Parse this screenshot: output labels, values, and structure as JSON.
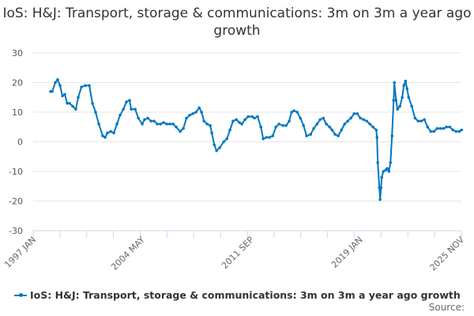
{
  "chart_data": {
    "type": "line",
    "title": "IoS: H&J: Transport, storage & communications: 3m on 3m a year ago growth",
    "xlabel": "",
    "ylabel": "",
    "ylim": [
      -30,
      30
    ],
    "xlim": [
      1997.0,
      2025.83
    ],
    "yticks": [
      30,
      20,
      10,
      0,
      -10,
      -20,
      -30
    ],
    "xticks": [
      {
        "value": 1997.0,
        "label": "1997 JAN"
      },
      {
        "value": 2004.33,
        "label": "2004 MAY"
      },
      {
        "value": 2011.67,
        "label": "2011 SEP"
      },
      {
        "value": 2019.0,
        "label": "2019 JAN"
      },
      {
        "value": 2025.83,
        "label": "2025 NOV"
      }
    ],
    "grid": true,
    "legend_position": "bottom",
    "color": "#0077c0",
    "series": [
      {
        "name": "IoS: H&J: Transport, storage & communications: 3m on 3m a year ago growth",
        "x": [
          1998.17,
          1998.28,
          1998.49,
          1998.65,
          1998.81,
          1998.97,
          1999.13,
          1999.29,
          1999.45,
          1999.66,
          1999.87,
          2000.03,
          2000.25,
          2000.51,
          2000.78,
          2000.99,
          2001.2,
          2001.42,
          2001.68,
          2001.84,
          2002.0,
          2002.22,
          2002.43,
          2002.64,
          2002.85,
          2003.07,
          2003.28,
          2003.49,
          2003.6,
          2003.87,
          2004.08,
          2004.34,
          2004.5,
          2004.72,
          2004.93,
          2005.14,
          2005.36,
          2005.57,
          2005.78,
          2005.99,
          2006.21,
          2006.42,
          2006.63,
          2006.9,
          2007.11,
          2007.32,
          2007.54,
          2007.75,
          2007.96,
          2008.18,
          2008.34,
          2008.5,
          2008.71,
          2008.92,
          2009.03,
          2009.19,
          2009.35,
          2009.56,
          2009.83,
          2010.04,
          2010.25,
          2010.46,
          2010.68,
          2010.89,
          2011.05,
          2011.26,
          2011.48,
          2011.74,
          2011.9,
          2012.11,
          2012.33,
          2012.49,
          2012.7,
          2012.91,
          2013.13,
          2013.34,
          2013.55,
          2013.82,
          2014.03,
          2014.24,
          2014.4,
          2014.56,
          2014.78,
          2014.99,
          2015.2,
          2015.41,
          2015.68,
          2015.89,
          2016.11,
          2016.32,
          2016.53,
          2016.74,
          2016.96,
          2017.12,
          2017.33,
          2017.54,
          2017.76,
          2017.97,
          2018.18,
          2018.39,
          2018.61,
          2018.82,
          2019.03,
          2019.25,
          2019.46,
          2019.67,
          2019.88,
          2020.1,
          2020.15,
          2020.2,
          2020.31,
          2020.36,
          2020.42,
          2020.47,
          2020.58,
          2020.74,
          2020.84,
          2020.95,
          2021.06,
          2021.16,
          2021.27,
          2021.32,
          2021.43,
          2021.53,
          2021.69,
          2021.85,
          2021.96,
          2022.07,
          2022.17,
          2022.28,
          2022.49,
          2022.71,
          2022.92,
          2023.13,
          2023.34,
          2023.56,
          2023.77,
          2023.98,
          2024.2,
          2024.41,
          2024.62,
          2024.83,
          2025.05,
          2025.26,
          2025.47,
          2025.69,
          2025.85
        ],
        "y": [
          17,
          17,
          20,
          21,
          19,
          15.5,
          16,
          13,
          13,
          12,
          11,
          15,
          18.5,
          19,
          19,
          13,
          10,
          6,
          2,
          1.5,
          3,
          3.5,
          3,
          6,
          9,
          11,
          13.5,
          14,
          11,
          11,
          8,
          6,
          7.5,
          8,
          7,
          7,
          6,
          6,
          6.5,
          6,
          6,
          6,
          5,
          3.5,
          4.5,
          8,
          9,
          9.5,
          10,
          11.5,
          10,
          7,
          6,
          5.5,
          3,
          -1,
          -3,
          -2,
          0,
          1,
          4,
          7,
          7.5,
          6.5,
          6,
          7.5,
          8.5,
          8.5,
          8,
          8.5,
          5,
          1,
          1.5,
          1.5,
          2,
          5,
          6,
          5.5,
          5.5,
          7,
          10,
          10.5,
          10,
          8,
          5.5,
          2,
          2.5,
          4.5,
          6,
          7.5,
          8,
          6,
          5,
          4,
          2.5,
          2,
          4,
          6,
          7,
          8,
          9.5,
          9.5,
          8,
          7.5,
          7,
          6,
          5,
          4,
          1.5,
          -7,
          -15.5,
          -19.5,
          -15.5,
          -12,
          -10,
          -9.5,
          -9,
          -10,
          -7,
          2,
          14,
          20,
          14,
          11,
          12,
          15,
          19,
          20.5,
          18,
          15,
          12,
          8,
          7,
          7,
          7.5,
          5,
          3.5,
          3.5,
          4.5,
          4.5,
          4.5,
          5,
          5,
          4,
          3.5,
          3.5,
          4
        ]
      }
    ]
  },
  "source_label": "Source:"
}
